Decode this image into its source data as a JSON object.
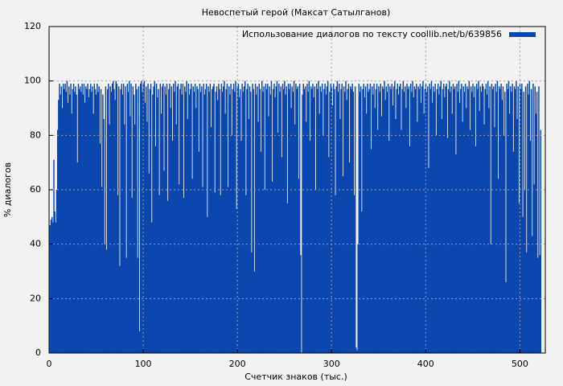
{
  "chart_data": {
    "type": "bar",
    "title": "Невоспетый герой (Максат Сатылганов)",
    "x_label": "Счетчик знаков (тыс.)",
    "y_label": "% диалогов",
    "series": [
      {
        "name": "Использование диалогов по тексту coollib.net/b/639856",
        "color": "#0a46ae",
        "values": [
          47,
          49,
          50,
          48,
          71,
          52,
          48,
          60,
          82,
          93,
          99,
          95,
          98,
          90,
          99,
          97,
          99,
          96,
          100,
          92,
          98,
          95,
          99,
          88,
          97,
          99,
          96,
          98,
          95,
          70,
          99,
          97,
          98,
          96,
          99,
          95,
          99,
          92,
          98,
          97,
          99,
          94,
          97,
          99,
          96,
          98,
          88,
          99,
          97,
          95,
          99,
          96,
          98,
          77,
          97,
          61,
          95,
          86,
          40,
          98,
          38,
          97,
          99,
          84,
          98,
          96,
          99,
          100,
          97,
          93,
          100,
          99,
          58,
          98,
          32,
          97,
          99,
          95,
          99,
          84,
          98,
          35,
          99,
          96,
          100,
          87,
          99,
          57,
          98,
          95,
          84,
          99,
          97,
          35,
          98,
          8,
          99,
          100,
          96,
          99,
          100,
          92,
          98,
          85,
          99,
          66,
          97,
          99,
          48,
          95,
          98,
          100,
          76,
          99,
          94,
          97,
          58,
          99,
          88,
          98,
          99,
          67,
          98,
          95,
          99,
          56,
          97,
          99,
          90,
          98,
          78,
          99,
          96,
          100,
          84,
          98,
          99,
          62,
          97,
          99,
          95,
          99,
          57,
          98,
          96,
          100,
          86,
          99,
          95,
          97,
          99,
          64,
          98,
          96,
          99,
          90,
          98,
          97,
          74,
          99,
          96,
          98,
          61,
          99,
          95,
          97,
          99,
          50,
          98,
          96,
          99,
          83,
          97,
          98,
          99,
          59,
          96,
          98,
          93,
          99,
          97,
          58,
          99,
          96,
          98,
          100,
          88,
          97,
          99,
          61,
          98,
          95,
          99,
          80,
          97,
          99,
          96,
          100,
          53,
          98,
          99,
          94,
          97,
          78,
          99,
          96,
          98,
          100,
          58,
          97,
          99,
          86,
          98,
          96,
          37,
          99,
          97,
          30,
          99,
          95,
          98,
          85,
          99,
          97,
          74,
          100,
          96,
          98,
          60,
          99,
          97,
          99,
          87,
          98,
          95,
          100,
          63,
          97,
          99,
          94,
          98,
          100,
          81,
          99,
          96,
          98,
          72,
          99,
          97,
          100,
          95,
          98,
          55,
          99,
          97,
          99,
          90,
          98,
          96,
          100,
          84,
          99,
          97,
          98,
          64,
          99,
          36,
          0,
          95,
          99,
          97,
          98,
          85,
          99,
          96,
          100,
          78,
          98,
          97,
          99,
          94,
          98,
          60,
          99,
          97,
          100,
          88,
          98,
          96,
          99,
          80,
          97,
          99,
          95,
          98,
          100,
          72,
          96,
          99,
          98,
          91,
          99,
          97,
          58,
          98,
          100,
          96,
          99,
          86,
          97,
          99,
          65,
          98,
          96,
          100,
          93,
          97,
          99,
          70,
          98,
          97,
          99,
          96,
          58,
          98,
          2,
          1,
          40,
          99,
          96,
          98,
          52,
          97,
          99,
          94,
          98,
          88,
          99,
          96,
          97,
          99,
          75,
          98,
          95,
          99,
          90,
          97,
          99,
          82,
          98,
          96,
          99,
          87,
          98,
          97,
          100,
          93,
          98,
          96,
          99,
          78,
          98,
          97,
          99,
          91,
          98,
          100,
          86,
          97,
          99,
          95,
          98,
          99,
          82,
          97,
          100,
          96,
          98,
          90,
          99,
          97,
          98,
          76,
          99,
          96,
          100,
          94,
          98,
          97,
          99,
          85,
          98,
          97,
          99,
          92,
          98,
          100,
          88,
          97,
          99,
          96,
          98,
          68,
          99,
          97,
          100,
          92,
          98,
          96,
          99,
          80,
          97,
          99,
          95,
          98,
          100,
          86,
          97,
          99,
          94,
          98,
          99,
          79,
          97,
          100,
          96,
          98,
          88,
          99,
          97,
          98,
          73,
          99,
          96,
          100,
          92,
          97,
          99,
          85,
          98,
          96,
          99,
          90,
          98,
          97,
          100,
          82,
          98,
          96,
          99,
          94,
          98,
          76,
          99,
          97,
          100,
          89,
          98,
          96,
          99,
          98,
          84,
          97,
          99,
          95,
          100,
          90,
          98,
          40,
          99,
          97,
          98,
          83,
          99,
          96,
          100,
          64,
          98,
          97,
          99,
          93,
          98,
          80,
          96,
          26,
          99,
          97,
          100,
          88,
          98,
          96,
          99,
          74,
          98,
          97,
          100,
          86,
          98,
          55,
          99,
          97,
          99,
          50,
          96,
          60,
          98,
          37,
          99,
          95,
          100,
          78,
          97,
          43,
          99,
          62,
          98,
          88,
          96,
          35,
          98,
          36,
          82
        ]
      }
    ],
    "x": [
      1,
      2,
      3,
      4,
      5,
      6,
      7,
      8,
      9,
      10,
      11,
      12,
      13,
      14,
      15,
      16,
      17,
      18,
      19,
      20,
      21,
      22,
      23,
      24,
      25,
      26,
      27,
      28,
      29,
      30,
      31,
      32,
      33,
      34,
      35,
      36,
      37,
      38,
      39,
      40,
      41,
      42,
      43,
      44,
      45,
      46,
      47,
      48,
      49,
      50,
      51,
      52,
      53,
      54,
      55,
      56,
      57,
      58,
      59,
      60,
      61,
      62,
      63,
      64,
      65,
      66,
      67,
      68,
      69,
      70,
      71,
      72,
      73,
      74,
      75,
      76,
      77,
      78,
      79,
      80,
      81,
      82,
      83,
      84,
      85,
      86,
      87,
      88,
      89,
      90,
      91,
      92,
      93,
      94,
      95,
      96,
      97,
      98,
      99,
      100,
      101,
      102,
      103,
      104,
      105,
      106,
      107,
      108,
      109,
      110,
      111,
      112,
      113,
      114,
      115,
      116,
      117,
      118,
      119,
      120,
      121,
      122,
      123,
      124,
      125,
      126,
      127,
      128,
      129,
      130,
      131,
      132,
      133,
      134,
      135,
      136,
      137,
      138,
      139,
      140,
      141,
      142,
      143,
      144,
      145,
      146,
      147,
      148,
      149,
      150,
      151,
      152,
      153,
      154,
      155,
      156,
      157,
      158,
      159,
      160,
      161,
      162,
      163,
      164,
      165,
      166,
      167,
      168,
      169,
      170,
      171,
      172,
      173,
      174,
      175,
      176,
      177,
      178,
      179,
      180,
      181,
      182,
      183,
      184,
      185,
      186,
      187,
      188,
      189,
      190,
      191,
      192,
      193,
      194,
      195,
      196,
      197,
      198,
      199,
      200,
      201,
      202,
      203,
      204,
      205,
      206,
      207,
      208,
      209,
      210,
      211,
      212,
      213,
      214,
      215,
      216,
      217,
      218,
      219,
      220,
      221,
      222,
      223,
      224,
      225,
      226,
      227,
      228,
      229,
      230,
      231,
      232,
      233,
      234,
      235,
      236,
      237,
      238,
      239,
      240,
      241,
      242,
      243,
      244,
      245,
      246,
      247,
      248,
      249,
      250,
      251,
      252,
      253,
      254,
      255,
      256,
      257,
      258,
      259,
      260,
      261,
      262,
      263,
      264,
      265,
      266,
      267,
      268,
      269,
      270,
      271,
      272,
      273,
      274,
      275,
      276,
      277,
      278,
      279,
      280,
      281,
      282,
      283,
      284,
      285,
      286,
      287,
      288,
      289,
      290,
      291,
      292,
      293,
      294,
      295,
      296,
      297,
      298,
      299,
      300,
      301,
      302,
      303,
      304,
      305,
      306,
      307,
      308,
      309,
      310,
      311,
      312,
      313,
      314,
      315,
      316,
      317,
      318,
      319,
      320,
      321,
      322,
      323,
      324,
      325,
      326,
      327,
      328,
      329,
      330,
      331,
      332,
      333,
      334,
      335,
      336,
      337,
      338,
      339,
      340,
      341,
      342,
      343,
      344,
      345,
      346,
      347,
      348,
      349,
      350,
      351,
      352,
      353,
      354,
      355,
      356,
      357,
      358,
      359,
      360,
      361,
      362,
      363,
      364,
      365,
      366,
      367,
      368,
      369,
      370,
      371,
      372,
      373,
      374,
      375,
      376,
      377,
      378,
      379,
      380,
      381,
      382,
      383,
      384,
      385,
      386,
      387,
      388,
      389,
      390,
      391,
      392,
      393,
      394,
      395,
      396,
      397,
      398,
      399,
      400,
      401,
      402,
      403,
      404,
      405,
      406,
      407,
      408,
      409,
      410,
      411,
      412,
      413,
      414,
      415,
      416,
      417,
      418,
      419,
      420,
      421,
      422,
      423,
      424,
      425,
      426,
      427,
      428,
      429,
      430,
      431,
      432,
      433,
      434,
      435,
      436,
      437,
      438,
      439,
      440,
      441,
      442,
      443,
      444,
      445,
      446,
      447,
      448,
      449,
      450,
      451,
      452,
      453,
      454,
      455,
      456,
      457,
      458,
      459,
      460,
      461,
      462,
      463,
      464,
      465,
      466,
      467,
      468,
      469,
      470,
      471,
      472,
      473,
      474,
      475,
      476,
      477,
      478,
      479,
      480,
      481,
      482,
      483,
      484,
      485,
      486,
      487,
      488,
      489,
      490,
      491,
      492,
      493,
      494,
      495,
      496,
      497,
      498,
      499,
      500,
      501,
      502,
      503,
      504,
      505,
      506,
      507,
      508,
      509,
      510,
      511,
      512,
      513,
      514,
      515,
      516,
      517,
      518,
      519,
      520,
      521,
      522
    ],
    "xlim": [
      0,
      527
    ],
    "xticks": [
      0,
      100,
      200,
      300,
      400,
      500
    ],
    "ylim": [
      0,
      120
    ],
    "yticks": [
      0,
      20,
      40,
      60,
      80,
      100,
      120
    ],
    "grid": true,
    "legend": "upper right"
  }
}
